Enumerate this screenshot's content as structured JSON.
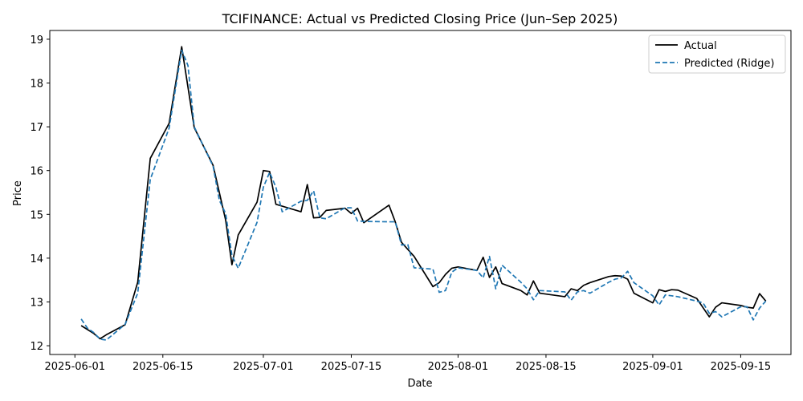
{
  "chart_data": {
    "type": "line",
    "title": "TCIFINANCE: Actual vs Predicted Closing Price (Jun–Sep 2025)",
    "xlabel": "Date",
    "ylabel": "Price",
    "xlim": [
      "2025-05-28",
      "2025-09-23"
    ],
    "ylim": [
      11.8,
      19.2
    ],
    "x_ticks": [
      "2025-06-01",
      "2025-06-15",
      "2025-07-01",
      "2025-07-15",
      "2025-08-01",
      "2025-08-15",
      "2025-09-01",
      "2025-09-15"
    ],
    "y_ticks": [
      12,
      13,
      14,
      15,
      16,
      17,
      18,
      19
    ],
    "grid": false,
    "legend_position": "top-right",
    "series": [
      {
        "name": "Actual",
        "color": "#000000",
        "style": "solid",
        "points": [
          [
            "2025-06-02",
            12.46
          ],
          [
            "2025-06-03",
            12.37
          ],
          [
            "2025-06-04",
            12.28
          ],
          [
            "2025-06-05",
            12.16
          ],
          [
            "2025-06-06",
            12.25
          ],
          [
            "2025-06-09",
            12.48
          ],
          [
            "2025-06-11",
            13.45
          ],
          [
            "2025-06-13",
            16.28
          ],
          [
            "2025-06-16",
            17.08
          ],
          [
            "2025-06-18",
            18.83
          ],
          [
            "2025-06-20",
            16.98
          ],
          [
            "2025-06-23",
            16.12
          ],
          [
            "2025-06-25",
            14.87
          ],
          [
            "2025-06-26",
            13.85
          ],
          [
            "2025-06-27",
            14.53
          ],
          [
            "2025-06-30",
            15.28
          ],
          [
            "2025-07-01",
            16.0
          ],
          [
            "2025-07-02",
            15.98
          ],
          [
            "2025-07-03",
            15.23
          ],
          [
            "2025-07-07",
            15.06
          ],
          [
            "2025-07-08",
            15.68
          ],
          [
            "2025-07-09",
            14.92
          ],
          [
            "2025-07-10",
            14.93
          ],
          [
            "2025-07-11",
            15.09
          ],
          [
            "2025-07-14",
            15.14
          ],
          [
            "2025-07-15",
            15.02
          ],
          [
            "2025-07-16",
            15.14
          ],
          [
            "2025-07-17",
            14.81
          ],
          [
            "2025-07-21",
            15.21
          ],
          [
            "2025-07-22",
            14.83
          ],
          [
            "2025-07-23",
            14.36
          ],
          [
            "2025-07-25",
            14.04
          ],
          [
            "2025-07-28",
            13.35
          ],
          [
            "2025-07-29",
            13.44
          ],
          [
            "2025-07-30",
            13.63
          ],
          [
            "2025-07-31",
            13.77
          ],
          [
            "2025-08-01",
            13.8
          ],
          [
            "2025-08-04",
            13.72
          ],
          [
            "2025-08-05",
            14.02
          ],
          [
            "2025-08-06",
            13.56
          ],
          [
            "2025-08-07",
            13.8
          ],
          [
            "2025-08-08",
            13.42
          ],
          [
            "2025-08-11",
            13.26
          ],
          [
            "2025-08-12",
            13.16
          ],
          [
            "2025-08-13",
            13.48
          ],
          [
            "2025-08-14",
            13.2
          ],
          [
            "2025-08-18",
            13.12
          ],
          [
            "2025-08-19",
            13.3
          ],
          [
            "2025-08-20",
            13.26
          ],
          [
            "2025-08-21",
            13.38
          ],
          [
            "2025-08-22",
            13.44
          ],
          [
            "2025-08-25",
            13.58
          ],
          [
            "2025-08-26",
            13.6
          ],
          [
            "2025-08-27",
            13.59
          ],
          [
            "2025-08-28",
            13.52
          ],
          [
            "2025-08-29",
            13.2
          ],
          [
            "2025-09-01",
            12.98
          ],
          [
            "2025-09-02",
            13.28
          ],
          [
            "2025-09-03",
            13.24
          ],
          [
            "2025-09-04",
            13.28
          ],
          [
            "2025-09-05",
            13.27
          ],
          [
            "2025-09-08",
            13.08
          ],
          [
            "2025-09-10",
            12.66
          ],
          [
            "2025-09-11",
            12.88
          ],
          [
            "2025-09-12",
            12.98
          ],
          [
            "2025-09-15",
            12.92
          ],
          [
            "2025-09-16",
            12.88
          ],
          [
            "2025-09-17",
            12.86
          ],
          [
            "2025-09-18",
            13.19
          ],
          [
            "2025-09-19",
            13.02
          ]
        ]
      },
      {
        "name": "Predicted (Ridge)",
        "color": "#1f77b4",
        "style": "dashed",
        "points": [
          [
            "2025-06-02",
            12.61
          ],
          [
            "2025-06-03",
            12.4
          ],
          [
            "2025-06-04",
            12.3
          ],
          [
            "2025-06-05",
            12.15
          ],
          [
            "2025-06-06",
            12.13
          ],
          [
            "2025-06-09",
            12.49
          ],
          [
            "2025-06-11",
            13.2
          ],
          [
            "2025-06-13",
            15.8
          ],
          [
            "2025-06-16",
            16.97
          ],
          [
            "2025-06-18",
            18.75
          ],
          [
            "2025-06-19",
            18.4
          ],
          [
            "2025-06-20",
            17.0
          ],
          [
            "2025-06-23",
            16.1
          ],
          [
            "2025-06-24",
            15.32
          ],
          [
            "2025-06-25",
            15.02
          ],
          [
            "2025-06-26",
            14.06
          ],
          [
            "2025-06-27",
            13.77
          ],
          [
            "2025-06-30",
            14.82
          ],
          [
            "2025-07-01",
            15.62
          ],
          [
            "2025-07-02",
            15.96
          ],
          [
            "2025-07-03",
            15.62
          ],
          [
            "2025-07-04",
            15.06
          ],
          [
            "2025-07-07",
            15.3
          ],
          [
            "2025-07-08",
            15.32
          ],
          [
            "2025-07-09",
            15.54
          ],
          [
            "2025-07-10",
            14.92
          ],
          [
            "2025-07-11",
            14.9
          ],
          [
            "2025-07-14",
            15.15
          ],
          [
            "2025-07-15",
            15.15
          ],
          [
            "2025-07-16",
            14.85
          ],
          [
            "2025-07-17",
            14.84
          ],
          [
            "2025-07-21",
            14.83
          ],
          [
            "2025-07-22",
            14.83
          ],
          [
            "2025-07-23",
            14.3
          ],
          [
            "2025-07-24",
            14.31
          ],
          [
            "2025-07-25",
            13.78
          ],
          [
            "2025-07-28",
            13.75
          ],
          [
            "2025-07-29",
            13.22
          ],
          [
            "2025-07-30",
            13.26
          ],
          [
            "2025-07-31",
            13.68
          ],
          [
            "2025-08-01",
            13.78
          ],
          [
            "2025-08-04",
            13.72
          ],
          [
            "2025-08-05",
            13.55
          ],
          [
            "2025-08-06",
            14.04
          ],
          [
            "2025-08-07",
            13.3
          ],
          [
            "2025-08-08",
            13.84
          ],
          [
            "2025-08-11",
            13.45
          ],
          [
            "2025-08-12",
            13.3
          ],
          [
            "2025-08-13",
            13.05
          ],
          [
            "2025-08-14",
            13.26
          ],
          [
            "2025-08-18",
            13.23
          ],
          [
            "2025-08-19",
            13.04
          ],
          [
            "2025-08-20",
            13.23
          ],
          [
            "2025-08-21",
            13.26
          ],
          [
            "2025-08-22",
            13.2
          ],
          [
            "2025-08-25",
            13.45
          ],
          [
            "2025-08-26",
            13.52
          ],
          [
            "2025-08-27",
            13.55
          ],
          [
            "2025-08-28",
            13.7
          ],
          [
            "2025-08-29",
            13.44
          ],
          [
            "2025-09-01",
            13.14
          ],
          [
            "2025-09-02",
            12.93
          ],
          [
            "2025-09-03",
            13.16
          ],
          [
            "2025-09-04",
            13.14
          ],
          [
            "2025-09-05",
            13.12
          ],
          [
            "2025-09-08",
            13.02
          ],
          [
            "2025-09-09",
            12.98
          ],
          [
            "2025-09-10",
            12.74
          ],
          [
            "2025-09-11",
            12.78
          ],
          [
            "2025-09-12",
            12.66
          ],
          [
            "2025-09-15",
            12.89
          ],
          [
            "2025-09-16",
            12.89
          ],
          [
            "2025-09-17",
            12.59
          ],
          [
            "2025-09-18",
            12.86
          ],
          [
            "2025-09-19",
            13.02
          ]
        ]
      }
    ]
  }
}
